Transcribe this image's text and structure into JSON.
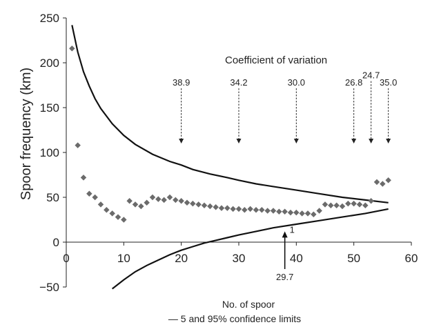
{
  "chart_data": {
    "type": "scatter",
    "title": "",
    "xlabel": "No. of spoor",
    "ylabel": "Spoor frequency (km)",
    "xlim": [
      0,
      60
    ],
    "ylim": [
      -50,
      250
    ],
    "xticks": [
      0,
      10,
      20,
      30,
      40,
      50,
      60
    ],
    "yticks": [
      -50,
      0,
      50,
      100,
      150,
      200,
      250
    ],
    "xtick_labels": [
      "0",
      "10",
      "20",
      "30",
      "40",
      "50",
      "60"
    ],
    "ytick_labels": [
      "−50",
      "0",
      "50",
      "100",
      "150",
      "200",
      "250"
    ],
    "grid": false,
    "legend_text": "— 5 and 95% confidence limits",
    "cv_heading": "Coefficient of variation",
    "series": [
      {
        "kind": "points",
        "x": [
          1,
          2,
          3,
          4,
          5,
          6,
          7,
          8,
          9,
          10,
          11,
          12,
          13,
          14,
          15,
          16,
          17,
          18,
          19,
          20,
          21,
          22,
          23,
          24,
          25,
          26,
          27,
          28,
          29,
          30,
          31,
          32,
          33,
          34,
          35,
          36,
          37,
          38,
          39,
          40,
          41,
          42,
          43,
          44,
          45,
          46,
          47,
          48,
          49,
          50,
          51,
          52,
          53,
          54,
          55,
          56
        ],
        "y": [
          216,
          108,
          72,
          54,
          50,
          42,
          36,
          32,
          28,
          25,
          46,
          42,
          40,
          44,
          50,
          48,
          47,
          50,
          47,
          46,
          44,
          43,
          42,
          41,
          40,
          39,
          38,
          38,
          37,
          37,
          36,
          37,
          36,
          36,
          35,
          35,
          34,
          34,
          33,
          33,
          32,
          32,
          31,
          35,
          42,
          41,
          41,
          40,
          43,
          43,
          42,
          41,
          46,
          67,
          65,
          69
        ]
      },
      {
        "kind": "upper-limit",
        "x": [
          1,
          2,
          3,
          4,
          5,
          6,
          8,
          10,
          12,
          15,
          18,
          20,
          22,
          25,
          28,
          30,
          33,
          36,
          40,
          44,
          48,
          52,
          56
        ],
        "y": [
          242,
          212,
          190,
          174,
          160,
          149,
          132,
          119,
          109,
          98,
          90,
          86,
          81,
          76,
          72,
          69,
          65,
          62,
          58,
          54,
          50,
          47,
          44
        ]
      },
      {
        "kind": "lower-limit",
        "x": [
          8,
          10,
          12,
          14,
          16,
          18,
          20,
          22,
          24,
          26,
          28,
          30,
          33,
          36,
          40,
          44,
          48,
          52,
          56
        ],
        "y": [
          -52,
          -42,
          -33,
          -26,
          -20,
          -14,
          -9,
          -5,
          -1,
          2,
          5,
          8,
          12,
          16,
          20,
          24,
          28,
          32,
          37
        ]
      }
    ],
    "annotations": {
      "cv_arrows": [
        {
          "label": "38.9",
          "x": 20,
          "y_top": 170,
          "y_bottom": 110
        },
        {
          "label": "34.2",
          "x": 30,
          "y_top": 170,
          "y_bottom": 110
        },
        {
          "label": "30.0",
          "x": 40,
          "y_top": 170,
          "y_bottom": 110
        },
        {
          "label": "26.8",
          "x": 50,
          "y_top": 170,
          "y_bottom": 110
        },
        {
          "label": "24.7",
          "x": 53,
          "y_top": 178,
          "y_bottom": 110
        },
        {
          "label": "35.0",
          "x": 56,
          "y_top": 170,
          "y_bottom": 110
        }
      ],
      "bottom_arrow": {
        "label": "29.7",
        "marker": "1",
        "x": 38,
        "y_from": -30,
        "y_to": 12
      }
    }
  }
}
